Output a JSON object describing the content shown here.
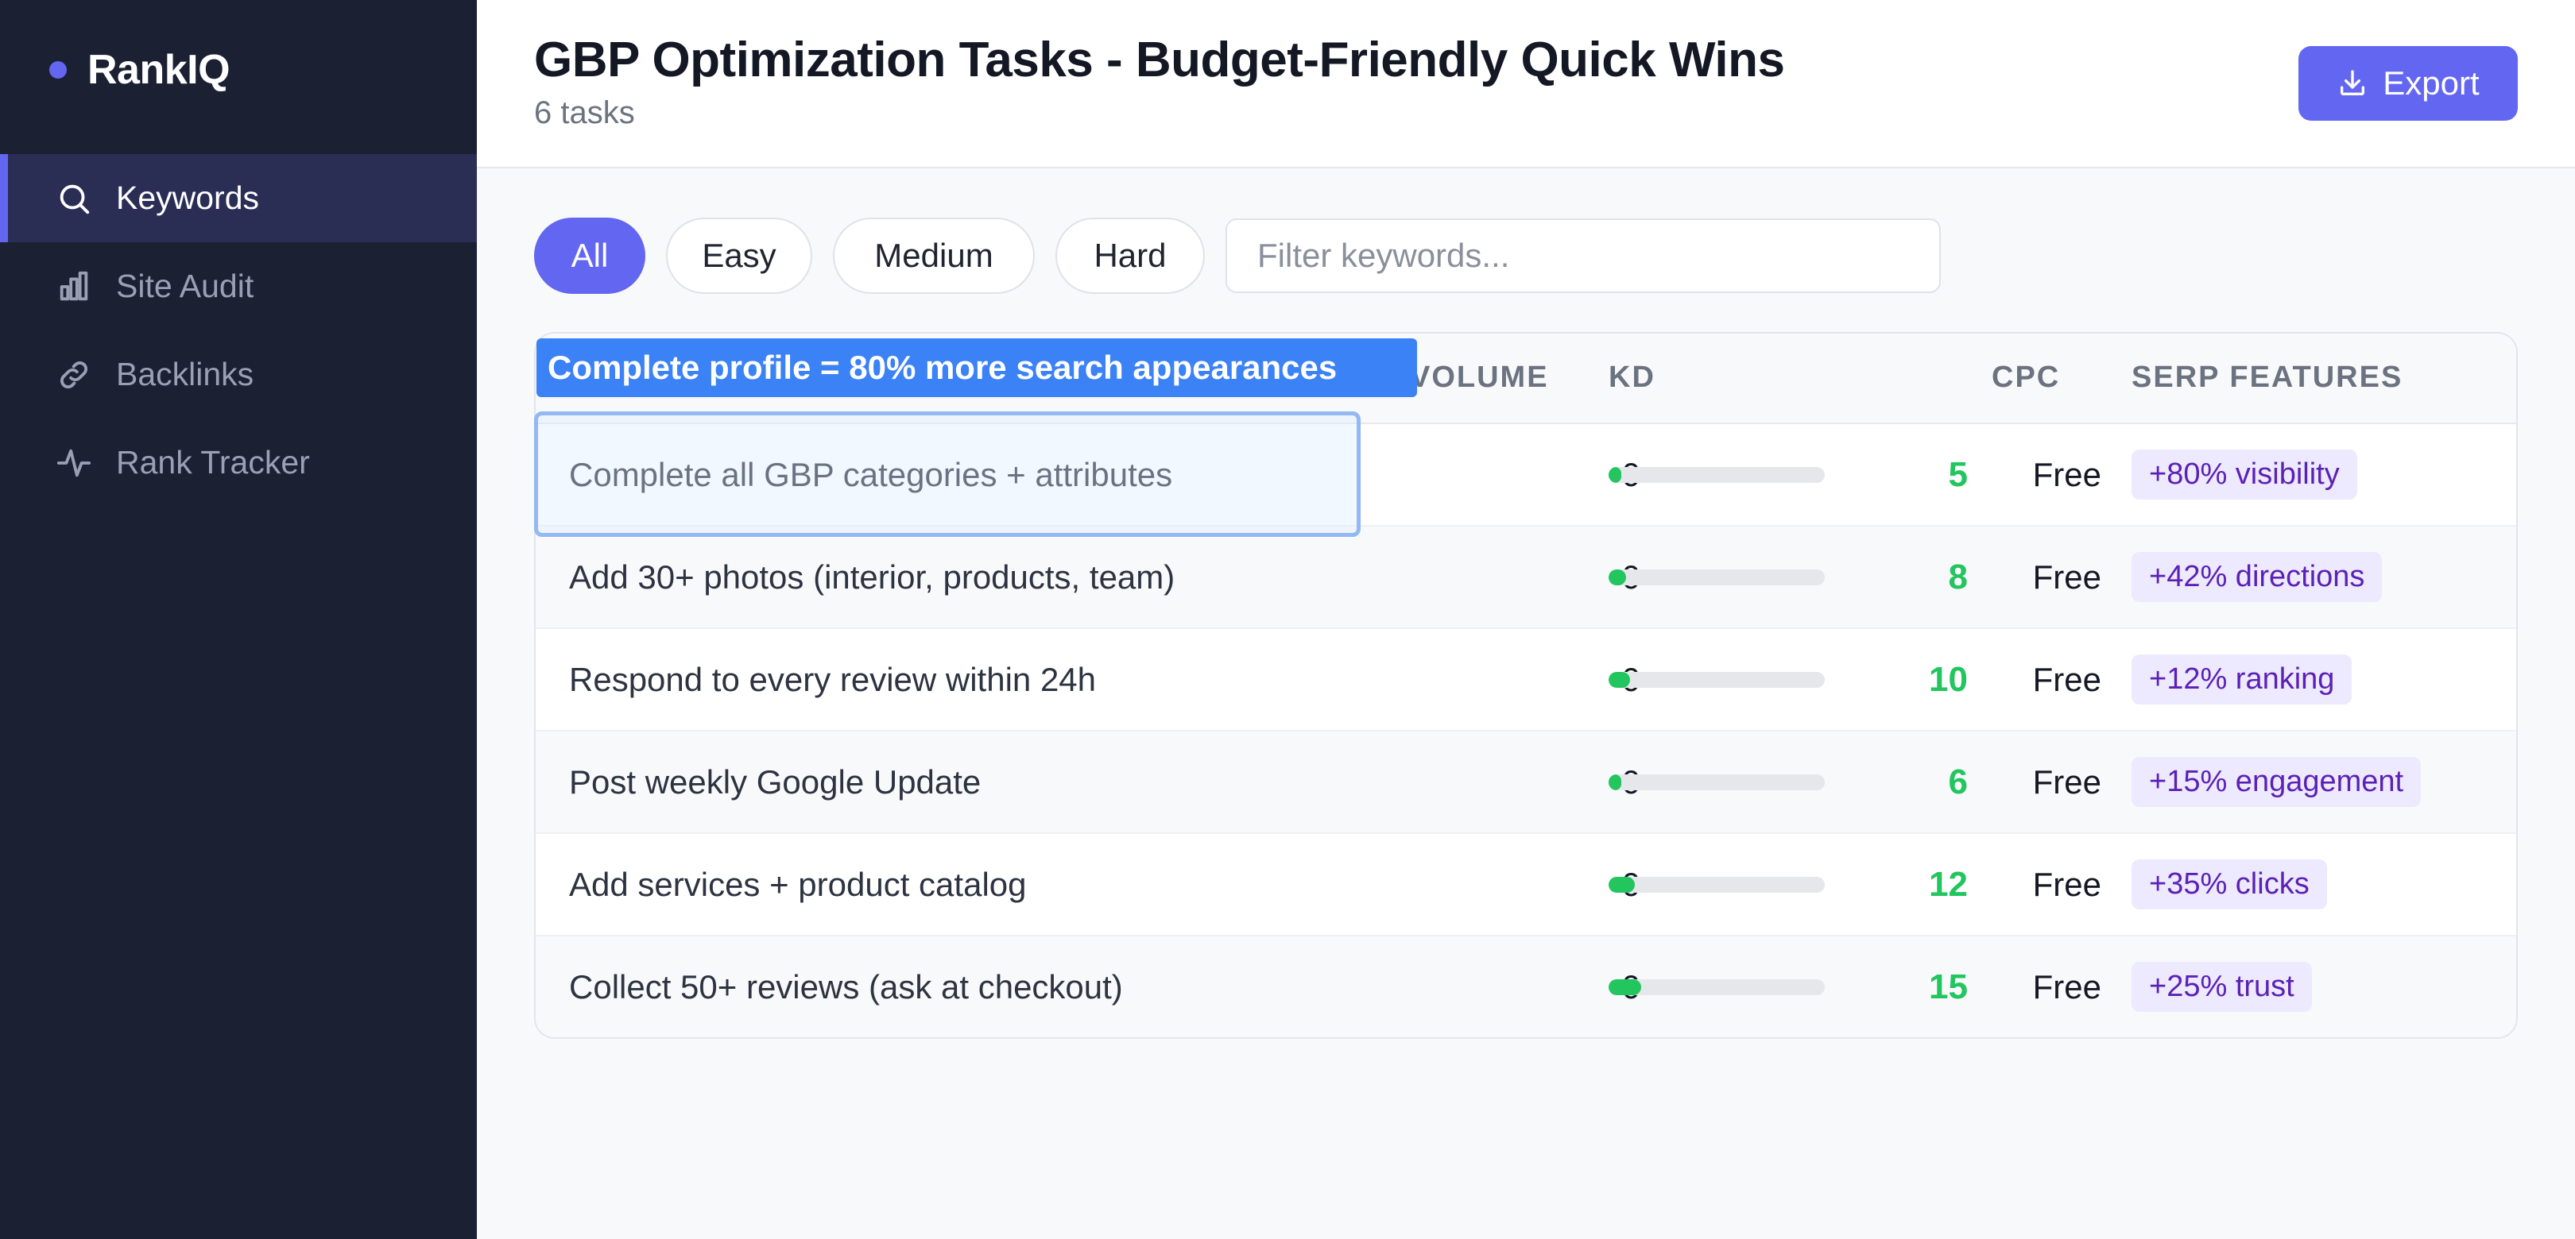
{
  "app": {
    "name": "RankIQ",
    "accent": "#6366f1"
  },
  "sidebar": {
    "items": [
      {
        "label": "Keywords",
        "icon": "search-icon",
        "active": true
      },
      {
        "label": "Site Audit",
        "icon": "bar-chart-icon",
        "active": false
      },
      {
        "label": "Backlinks",
        "icon": "link-icon",
        "active": false
      },
      {
        "label": "Rank Tracker",
        "icon": "activity-icon",
        "active": false
      }
    ]
  },
  "header": {
    "title": "GBP Optimization Tasks - Budget-Friendly Quick Wins",
    "subtitle": "6 tasks",
    "export_label": "Export"
  },
  "filters": {
    "pills": [
      "All",
      "Easy",
      "Medium",
      "Hard"
    ],
    "active": "All",
    "search_placeholder": "Filter keywords..."
  },
  "table": {
    "columns": {
      "volume": "VOLUME",
      "kd": "KD",
      "cpc": "CPC",
      "serp": "SERP FEATURES"
    },
    "rows": [
      {
        "task": "Complete all GBP categories + attributes",
        "volume": "0",
        "kd": "5",
        "kd_fraction": 0.05,
        "cpc": "Free",
        "serp": "+80% visibility"
      },
      {
        "task": "Add 30+ photos (interior, products, team)",
        "volume": "0",
        "kd": "8",
        "kd_fraction": 0.08,
        "cpc": "Free",
        "serp": "+42% directions"
      },
      {
        "task": "Respond to every review within 24h",
        "volume": "0",
        "kd": "10",
        "kd_fraction": 0.1,
        "cpc": "Free",
        "serp": "+12% ranking"
      },
      {
        "task": "Post weekly Google Update",
        "volume": "0",
        "kd": "6",
        "kd_fraction": 0.06,
        "cpc": "Free",
        "serp": "+15% engagement"
      },
      {
        "task": "Add services + product catalog",
        "volume": "0",
        "kd": "12",
        "kd_fraction": 0.12,
        "cpc": "Free",
        "serp": "+35% clicks"
      },
      {
        "task": "Collect 50+ reviews (ask at checkout)",
        "volume": "0",
        "kd": "15",
        "kd_fraction": 0.15,
        "cpc": "Free",
        "serp": "+25% trust"
      }
    ]
  },
  "tooltip": {
    "text": "Complete profile = 80% more search appearances"
  },
  "colors": {
    "kd_good": "#22c55e",
    "badge_bg": "#ede9fe",
    "badge_text": "#5b21b6",
    "tooltip_bg": "#3b82f6"
  }
}
